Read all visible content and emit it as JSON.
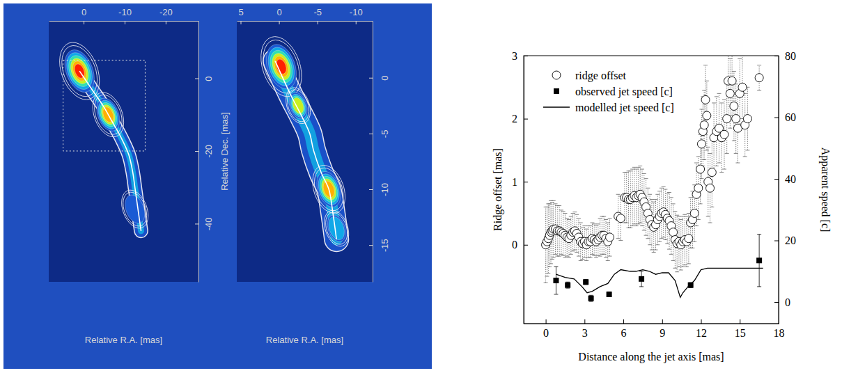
{
  "chart_data": [
    {
      "type": "image",
      "xlabel": "Relative R.A. [mas]",
      "ylabel": "Relative Dec. [mas]",
      "xlim": [
        8.5,
        -28
      ],
      "ylim": [
        15.8,
        -56
      ],
      "xticks": [
        0,
        -10,
        -20
      ],
      "yticks": [
        0,
        -20,
        -40
      ],
      "ridge": {
        "x": [
          1,
          -2,
          -5,
          -7,
          -9,
          -11,
          -12,
          -12.5,
          -13,
          -13.5,
          -14
        ],
        "y": [
          2,
          -3,
          -8,
          -12,
          -16,
          -21,
          -26,
          -30,
          -34,
          -38,
          -42
        ]
      },
      "knots": [
        {
          "ra": 1,
          "dec": 2,
          "size": 4.5,
          "flux": 1
        },
        {
          "ra": -6,
          "dec": -10,
          "size": 3.5,
          "flux": 0.85
        },
        {
          "ra": -12.5,
          "dec": -36,
          "size": 3,
          "flux": 0.2
        }
      ],
      "region": {
        "x": [
          5,
          -15
        ],
        "y": [
          5,
          -20
        ]
      }
    },
    {
      "type": "image",
      "xlabel": "Relative R.A. [mas]",
      "xlim": [
        5.5,
        -12.2
      ],
      "ylim": [
        5.1,
        -18.3
      ],
      "xticks": [
        5,
        0,
        -5,
        -10
      ],
      "yticks": [
        0,
        -5,
        -10,
        -15
      ],
      "ridge": {
        "x": [
          0.5,
          -1.5,
          -3,
          -4,
          -4.5,
          -5.5,
          -6.5,
          -7,
          -7.5
        ],
        "y": [
          1.5,
          -1.5,
          -3.5,
          -5,
          -6.5,
          -8.5,
          -10,
          -12,
          -14.5
        ]
      },
      "knots": [
        {
          "ra": -0.3,
          "dec": 1,
          "size": 2.5,
          "flux": 1
        },
        {
          "ra": -2.5,
          "dec": -2.5,
          "size": 1.5,
          "flux": 0.7
        },
        {
          "ra": -6.5,
          "dec": -10,
          "size": 2,
          "flux": 0.9
        },
        {
          "ra": -7.5,
          "dec": -13.5,
          "size": 1.5,
          "flux": 0.4
        }
      ]
    },
    {
      "type": "scatter",
      "xlabel": "Distance along the jet axis [mas]",
      "ylabel": "Ridge offset [mas]",
      "y2label": "Apparent speed [c]",
      "xlim": [
        -1.7,
        18
      ],
      "ylim": [
        -1.25,
        3
      ],
      "y2lim": [
        -7,
        80
      ],
      "xticks": [
        0,
        3,
        6,
        9,
        12,
        15,
        18
      ],
      "yticks": [
        0,
        1,
        2,
        3
      ],
      "y2ticks": [
        0,
        20,
        40,
        60,
        80
      ],
      "legend": "top-left",
      "series": [
        {
          "name": "ridge offset",
          "type": "scatter",
          "marker": "circle",
          "x": [
            0.0,
            0.1,
            0.2,
            0.3,
            0.4,
            0.5,
            0.6,
            0.75,
            0.9,
            1.05,
            1.2,
            1.35,
            1.5,
            1.65,
            1.8,
            1.95,
            2.1,
            2.25,
            2.4,
            2.55,
            2.7,
            2.85,
            3.0,
            3.15,
            3.3,
            3.45,
            3.6,
            3.75,
            3.9,
            4.05,
            4.2,
            4.35,
            4.5,
            4.65,
            4.8,
            4.95,
            5.6,
            5.8,
            6.1,
            6.25,
            6.4,
            6.55,
            6.7,
            6.85,
            7.0,
            7.15,
            7.3,
            7.45,
            7.6,
            7.75,
            7.9,
            8.05,
            8.2,
            8.35,
            8.5,
            8.65,
            8.8,
            8.95,
            9.1,
            9.25,
            9.4,
            9.55,
            9.7,
            9.85,
            10.0,
            10.15,
            10.3,
            10.45,
            10.6,
            10.75,
            10.9,
            11.05,
            11.2,
            11.35,
            11.5,
            11.65,
            11.8,
            11.95,
            12.05,
            12.15,
            12.25,
            12.35,
            12.45,
            12.55,
            12.7,
            12.85,
            13.0,
            13.2,
            13.4,
            13.6,
            13.8,
            14.0,
            14.1,
            14.25,
            14.4,
            14.55,
            14.7,
            14.85,
            15.0,
            15.2,
            15.4,
            15.6,
            16.5
          ],
          "values": [
            0.0,
            0.05,
            0.1,
            0.15,
            0.2,
            0.22,
            0.25,
            0.25,
            0.22,
            0.22,
            0.2,
            0.18,
            0.15,
            0.12,
            0.1,
            0.15,
            0.2,
            0.22,
            0.18,
            0.12,
            0.05,
            0.02,
            0.05,
            0.0,
            0.05,
            0.05,
            0.1,
            0.08,
            0.05,
            0.08,
            0.12,
            0.15,
            0.15,
            0.1,
            0.05,
            0.12,
            0.45,
            0.42,
            0.75,
            0.75,
            0.72,
            0.72,
            0.75,
            0.78,
            0.75,
            0.78,
            0.8,
            0.75,
            0.68,
            0.6,
            0.5,
            0.4,
            0.32,
            0.28,
            0.32,
            0.4,
            0.45,
            0.5,
            0.52,
            0.48,
            0.42,
            0.38,
            0.3,
            0.2,
            0.08,
            0.02,
            0.05,
            0.0,
            0.05,
            0.08,
            0.05,
            0.1,
            0.35,
            0.4,
            0.5,
            0.8,
            0.9,
            1.2,
            1.6,
            1.8,
            1.9,
            2.3,
            2.05,
            1.0,
            0.9,
            1.15,
            1.7,
            1.8,
            1.85,
            1.7,
            1.75,
            2.0,
            2.6,
            2.4,
            2.6,
            2.2,
            2.0,
            1.85,
            2.4,
            2.5,
            1.9,
            2.0,
            2.65
          ],
          "errors": [
            0.6,
            0.55,
            0.55,
            0.5,
            0.5,
            0.45,
            0.45,
            0.4,
            0.4,
            0.4,
            0.35,
            0.35,
            0.35,
            0.3,
            0.3,
            0.3,
            0.3,
            0.3,
            0.3,
            0.3,
            0.3,
            0.25,
            0.25,
            0.25,
            0.25,
            0.25,
            0.25,
            0.25,
            0.25,
            0.25,
            0.3,
            0.3,
            0.3,
            0.3,
            0.3,
            0.3,
            0.35,
            0.35,
            0.4,
            0.4,
            0.45,
            0.45,
            0.45,
            0.45,
            0.45,
            0.45,
            0.45,
            0.45,
            0.45,
            0.45,
            0.4,
            0.4,
            0.4,
            0.4,
            0.4,
            0.4,
            0.4,
            0.4,
            0.4,
            0.4,
            0.4,
            0.45,
            0.45,
            0.45,
            0.45,
            0.45,
            0.4,
            0.4,
            0.4,
            0.4,
            0.4,
            0.4,
            0.4,
            0.45,
            0.45,
            0.5,
            0.5,
            0.55,
            0.55,
            0.55,
            0.55,
            0.55,
            0.55,
            0.55,
            0.55,
            0.55,
            0.55,
            0.55,
            0.55,
            0.55,
            0.55,
            0.55,
            0.55,
            0.55,
            0.55,
            0.55,
            0.55,
            0.55,
            0.55,
            0.5,
            0.5,
            0.5,
            0.2
          ]
        },
        {
          "name": "observed jet speed [c]",
          "type": "scatter",
          "marker": "square",
          "axis": "y2",
          "x": [
            0.8,
            1.7,
            3.1,
            3.5,
            4.9,
            7.4,
            11.2,
            16.5
          ],
          "values": [
            7,
            5.5,
            6.5,
            1.2,
            2.5,
            7.5,
            5.5,
            13.5
          ],
          "errors": [
            4.5,
            1,
            0.8,
            1,
            0.8,
            2.5,
            0.8,
            8.5
          ]
        },
        {
          "name": "modelled jet speed [c]",
          "type": "line",
          "axis": "y2",
          "color": "#000000",
          "x": [
            0.8,
            1.5,
            2.2,
            2.8,
            3.2,
            3.6,
            4.2,
            4.8,
            5.3,
            5.8,
            6.5,
            7.0,
            7.5,
            8.0,
            8.5,
            9.0,
            9.5,
            10.0,
            10.4,
            10.6,
            11.0,
            11.5,
            12.0,
            12.5,
            14.0,
            16.8
          ],
          "values": [
            9,
            8,
            7.5,
            5,
            3,
            3.5,
            5,
            6,
            9,
            10.5,
            10,
            10,
            10.5,
            10,
            9,
            9.5,
            9.5,
            7,
            1.5,
            3,
            5,
            7,
            10.5,
            11,
            11,
            11
          ]
        }
      ]
    }
  ]
}
